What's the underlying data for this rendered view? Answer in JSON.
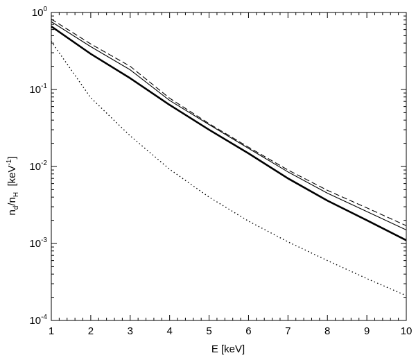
{
  "chart_data": {
    "type": "line",
    "xlabel": "E  [keV]",
    "ylabel": {
      "n1": "n",
      "sub_d": "d",
      "slash": "/n",
      "sub_H": "H",
      "unit_open": "  [keV",
      "unit_exp": "-1",
      "unit_close": "]"
    },
    "xlim": [
      1,
      10
    ],
    "ylim": [
      0.0001,
      1.0
    ],
    "yscale": "log",
    "grid": false,
    "x_ticks": [
      "1",
      "2",
      "3",
      "4",
      "5",
      "6",
      "7",
      "8",
      "9",
      "10"
    ],
    "y_ticks": [
      {
        "value": 0.0001,
        "base": "10",
        "exp": "-4"
      },
      {
        "value": 0.001,
        "base": "10",
        "exp": "-3"
      },
      {
        "value": 0.01,
        "base": "10",
        "exp": "-2"
      },
      {
        "value": 0.1,
        "base": "10",
        "exp": "-1"
      },
      {
        "value": 1.0,
        "base": "10",
        "exp": "0"
      }
    ],
    "series": [
      {
        "style": "thick-solid",
        "color": "#000000",
        "x": [
          1,
          2,
          3,
          4,
          5,
          6,
          7,
          8,
          9,
          10
        ],
        "y": [
          0.66,
          0.29,
          0.14,
          0.063,
          0.03,
          0.0148,
          0.007,
          0.0036,
          0.002,
          0.0011
        ]
      },
      {
        "style": "thin-solid",
        "color": "#000000",
        "x": [
          1,
          2,
          3,
          4,
          5,
          6,
          7,
          8,
          9,
          10
        ],
        "y": [
          0.76,
          0.36,
          0.18,
          0.072,
          0.035,
          0.0172,
          0.0085,
          0.0045,
          0.0026,
          0.0015
        ]
      },
      {
        "style": "dashed",
        "color": "#000000",
        "x": [
          1,
          2,
          3,
          4,
          5,
          6,
          7,
          8,
          9,
          10
        ],
        "y": [
          0.82,
          0.39,
          0.2,
          0.077,
          0.036,
          0.0178,
          0.009,
          0.0049,
          0.0029,
          0.0017
        ]
      },
      {
        "style": "dotted",
        "color": "#000000",
        "x": [
          1,
          2,
          3,
          4,
          5,
          6,
          7,
          8,
          9,
          10
        ],
        "y": [
          0.42,
          0.078,
          0.025,
          0.0092,
          0.004,
          0.00195,
          0.00105,
          0.0006,
          0.00035,
          0.00021
        ]
      }
    ]
  }
}
